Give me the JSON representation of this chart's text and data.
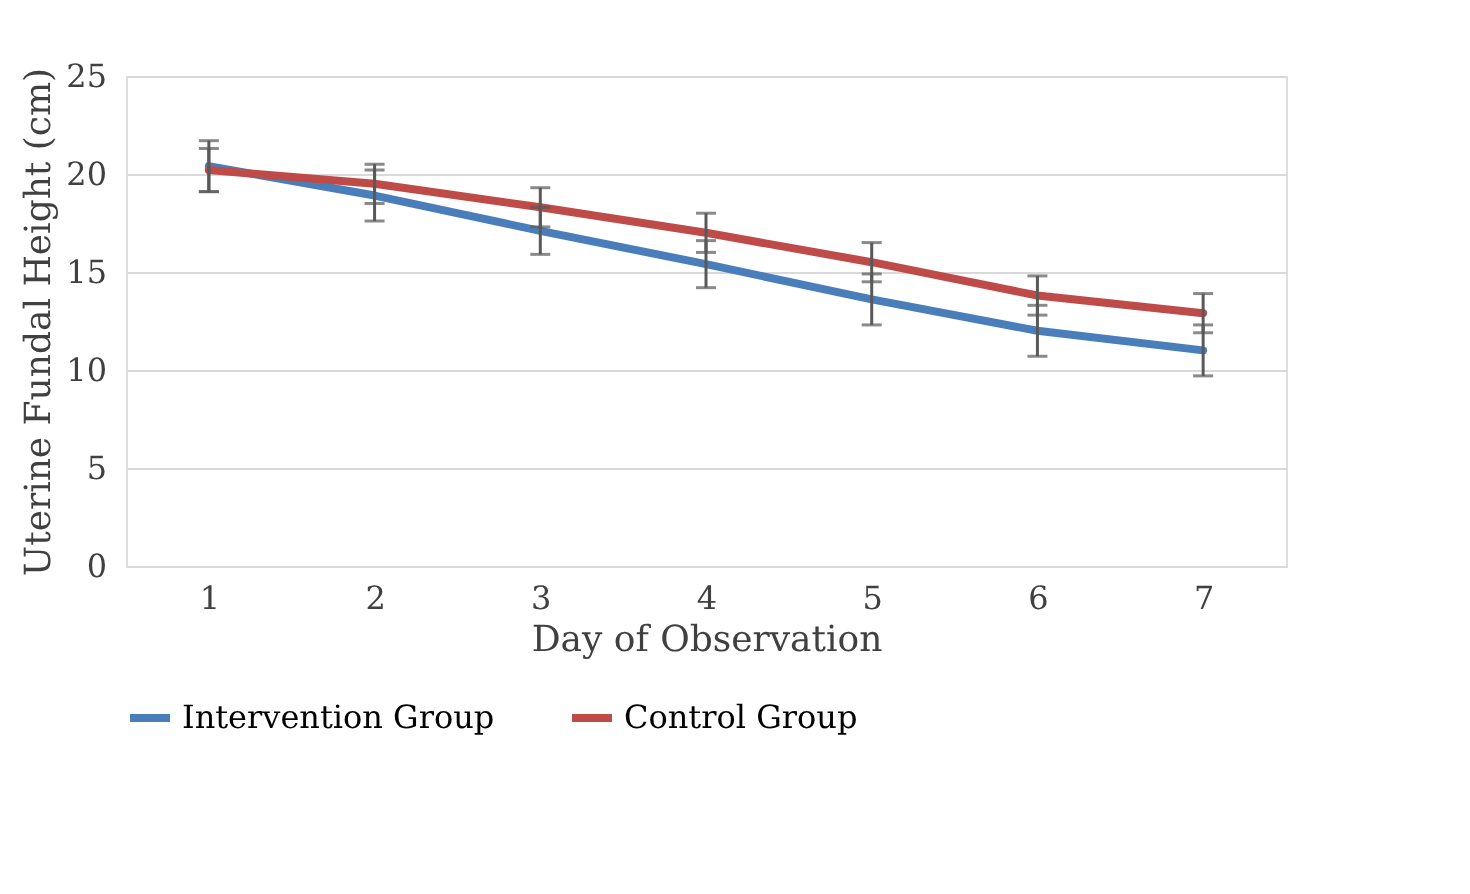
{
  "chart_data": {
    "type": "line",
    "xlabel": "Day of Observation",
    "ylabel": "Uterine Fundal Height (cm)",
    "categories": [
      "1",
      "2",
      "3",
      "4",
      "5",
      "6",
      "7"
    ],
    "series": [
      {
        "name": "Intervention Group",
        "color": "#4a7ebb",
        "values": [
          20.4,
          18.9,
          17.1,
          15.4,
          13.6,
          12.0,
          11.0
        ],
        "errors": [
          1.3,
          1.3,
          1.2,
          1.2,
          1.3,
          1.3,
          1.3
        ]
      },
      {
        "name": "Control Group",
        "color": "#be4b48",
        "values": [
          20.2,
          19.5,
          18.3,
          17.0,
          15.5,
          13.8,
          12.9
        ],
        "errors": [
          1.1,
          1.0,
          1.0,
          1.0,
          1.0,
          1.0,
          1.0
        ]
      }
    ],
    "ylim": [
      0,
      25
    ],
    "yticks": [
      0,
      5,
      10,
      15,
      20,
      25
    ],
    "grid": "y",
    "legend": "bottom",
    "marker": "none",
    "line_style": "solid"
  }
}
